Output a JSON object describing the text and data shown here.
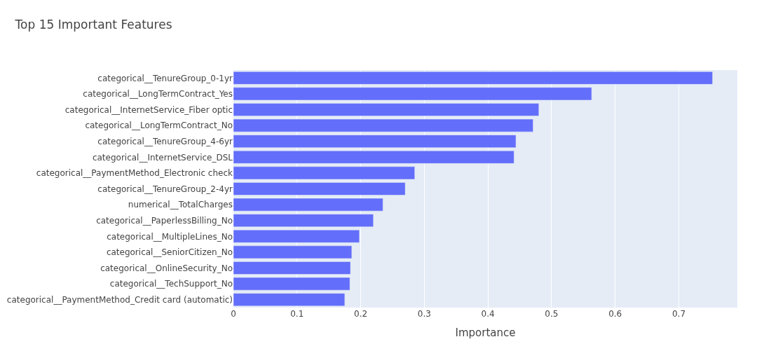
{
  "chart_data": {
    "type": "bar",
    "orientation": "horizontal",
    "title": "Top 15 Important Features",
    "xlabel": "Importance",
    "categories": [
      "categorical__TenureGroup_0-1yr",
      "categorical__LongTermContract_Yes",
      "categorical__InternetService_Fiber optic",
      "categorical__LongTermContract_No",
      "categorical__TenureGroup_4-6yr",
      "categorical__InternetService_DSL",
      "categorical__PaymentMethod_Electronic check",
      "categorical__TenureGroup_2-4yr",
      "numerical__TotalCharges",
      "categorical__PaperlessBilling_No",
      "categorical__MultipleLines_No",
      "categorical__SeniorCitizen_No",
      "categorical__OnlineSecurity_No",
      "categorical__TechSupport_No",
      "categorical__PaymentMethod_Credit card (automatic)"
    ],
    "values": [
      0.753,
      0.563,
      0.48,
      0.471,
      0.444,
      0.441,
      0.285,
      0.27,
      0.235,
      0.22,
      0.198,
      0.186,
      0.184,
      0.183,
      0.175
    ],
    "color": "#636efa",
    "xlim": [
      0,
      0.792
    ],
    "xticks": [
      0,
      0.1,
      0.2,
      0.3,
      0.4,
      0.5,
      0.6,
      0.7
    ],
    "grid": "x",
    "legend": false
  }
}
